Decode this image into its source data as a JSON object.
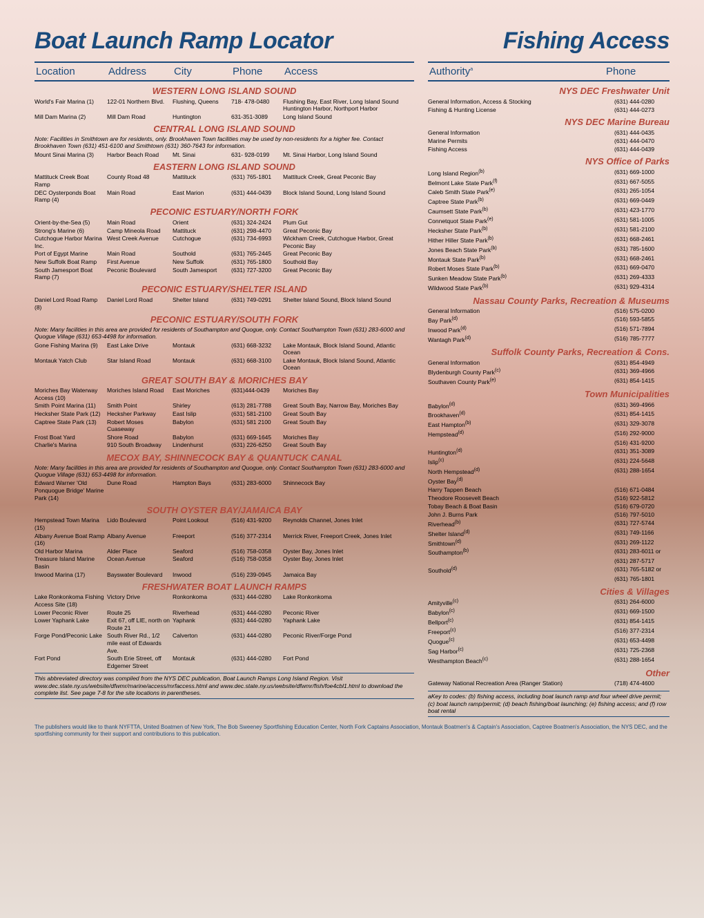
{
  "colors": {
    "blue": "#1a4b7c",
    "red": "#b5483b",
    "yellow": "#a68b3c"
  },
  "titles": {
    "left": "Boat Launch Ramp Locator",
    "right": "Fishing Access"
  },
  "headers_left": [
    "Location",
    "Address",
    "City",
    "Phone",
    "Access"
  ],
  "headers_right": [
    "Authority",
    "Phone"
  ],
  "headers_right_sup": "a",
  "left_sections": [
    {
      "title": "WESTERN LONG ISLAND SOUND",
      "rows": [
        [
          "World's Fair Marina (1)",
          "122-01 Northern Blvd.",
          "Flushing, Queens",
          "718- 478-0480",
          "Flushing Bay, East River, Long Island Sound Huntington Harbor, Northport Harbor"
        ],
        [
          "Mill Dam Marina (2)",
          "Mill Dam Road",
          "Huntington",
          "631-351-3089",
          "Long Island Sound"
        ]
      ]
    },
    {
      "title": "CENTRAL LONG ISLAND SOUND",
      "note": "Note: Facilities in Smithtown are for residents, only. Brookhaven Town facilities may be used by non-residents for a higher fee. Contact Brookhaven Town (631) 451-6100 and Smithtown (631) 360-7643 for information.",
      "rows": [
        [
          "Mount Sinai Marina (3)",
          "Harbor Beach Road",
          "Mt. Sinai",
          "631- 928-0199",
          "Mt. Sinai Harbor, Long Island Sound"
        ]
      ]
    },
    {
      "title": "EASTERN LONG ISLAND SOUND",
      "rows": [
        [
          "Mattituck Creek Boat Ramp",
          "County Road 48",
          "Mattituck",
          "(631) 765-1801",
          "Mattituck Creek, Great Peconic Bay"
        ],
        [
          "DEC Oysterponds Boat Ramp (4)",
          "Main Road",
          "East Marion",
          "(631) 444-0439",
          "Block Island Sound, Long Island Sound"
        ]
      ]
    },
    {
      "title": "PECONIC ESTUARY/NORTH FORK",
      "rows": [
        [
          "Orient-by-the-Sea (5)",
          "Main Road",
          "Orient",
          "(631) 324-2424",
          "Plum Gut"
        ],
        [
          "Strong's Marine (6)",
          "Camp Mineola Road",
          "Mattituck",
          "(631) 298-4470",
          "Great Peconic Bay"
        ],
        [
          "Cutchogue Harbor Marina Inc.",
          "West Creek Avenue",
          "Cutchogue",
          "(631) 734-6993",
          "Wickham Creek, Cutchogue Harbor, Great Peconic Bay"
        ],
        [
          "Port of Egypt Marine",
          "Main Road",
          "Southold",
          "(631) 765-2445",
          "Great Peconic Bay"
        ],
        [
          "New Suffolk Boat Ramp",
          "First Avenue",
          "New Suffolk",
          "(631) 765-1800",
          "Southold Bay"
        ],
        [
          "South Jamesport Boat Ramp (7)",
          "Peconic Boulevard",
          "South Jamesport",
          "(631) 727-3200",
          "Great Peconic Bay"
        ]
      ]
    },
    {
      "title": "PECONIC ESTUARY/SHELTER ISLAND",
      "rows": [
        [
          "Daniel Lord Road Ramp (8)",
          "Daniel Lord Road",
          "Shelter Island",
          "(631) 749-0291",
          "Shelter Island Sound, Block Island Sound"
        ]
      ]
    },
    {
      "title": "PECONIC ESTUARY/SOUTH FORK",
      "note": "Note: Many facilities in this area are provided for residents of Southampton and Quogue, only. Contact Southampton Town (631) 283-6000 and Quogue Village (631) 653-4498 for information.",
      "rows": [
        [
          "Gone Fishing Marina (9)",
          "East Lake Drive",
          "Montauk",
          "(631) 668-3232",
          "Lake Montauk, Block Island Sound, Atlantic Ocean"
        ],
        [
          "Montauk Yatch Club",
          "Star Island Road",
          "Montauk",
          "(631) 668-3100",
          "Lake Montauk, Block Island Sound, Atlantic Ocean"
        ]
      ]
    },
    {
      "title": "GREAT SOUTH BAY & MORICHES BAY",
      "rows": [
        [
          "Moriches Bay Waterway Access (10)",
          "Moriches Island Road",
          "East Moriches",
          "(631)444-0439",
          "Moriches Bay"
        ],
        [
          "Smith Point Marina (11)",
          "Smith Point",
          "Shirley",
          "(613) 281-7788",
          "Great South Bay, Narrow Bay, Moriches Bay"
        ],
        [
          "Hecksher State Park (12)",
          "Hecksher Parkway",
          "East Islip",
          "(631) 581-2100",
          "Great South Bay"
        ],
        [
          "Captree State Park (13)",
          "Robert Moses Cuaseway",
          "Babylon",
          "(631) 581 2100",
          "Great South Bay"
        ],
        [
          "Frost Boat Yard",
          "Shore Road",
          "Babylon",
          "(631) 669-1645",
          "Moriches Bay"
        ],
        [
          "Charlie's Marina",
          "910 South Broadway",
          "Lindenhurst",
          "(631) 226-6250",
          "Great South Bay"
        ]
      ]
    },
    {
      "title": "MECOX BAY, SHINNECOCK BAY & QUANTUCK CANAL",
      "note": "Note: Many facilities in this area are provided for residents of Southampton and Quogue, only. Contact Southampton Town (631) 283-6000 and Quogue Village (631) 653-4498 for information.",
      "rows": [
        [
          "Edward Warner 'Old Ponquogue Bridge' Marine Park (14)",
          "Dune Road",
          "Hampton Bays",
          "(631) 283-6000",
          "Shinnecock Bay"
        ]
      ]
    },
    {
      "title": "SOUTH OYSTER BAY/JAMAICA BAY",
      "rows": [
        [
          "Hempstead Town Marina (15)",
          "Lido Boulevard",
          "Point Lookout",
          "(516) 431-9200",
          "Reynolds Channel, Jones Inlet"
        ],
        [
          "Albany Avenue Boat Ramp (16)",
          "Albany Avenue",
          "Freeport",
          "(516) 377-2314",
          "Merrick River, Freeport Creek, Jones Inlet"
        ],
        [
          "Old Harbor Marina",
          "Alder Place",
          "Seaford",
          "(516) 758-0358",
          "Oyster Bay, Jones Inlet"
        ],
        [
          "Treasure Island Marine Basin",
          "Ocean Avenue",
          "Seaford",
          "(516) 758-0358",
          "Oyster Bay, Jones Inlet"
        ],
        [
          "Inwood Marina (17)",
          "Bayswater Boulevard",
          "Inwood",
          "(516) 239-0945",
          "Jamaica Bay"
        ]
      ]
    },
    {
      "title": "FRESHWATER BOAT LAUNCH RAMPS",
      "rows": [
        [
          "Lake Ronkonkoma Fishing Access Site (18)",
          "Victory Drive",
          "Ronkonkoma",
          "(631) 444-0280",
          "Lake Ronkonkoma"
        ],
        [
          "Lower Peconic River",
          "Route 25",
          "Riverhead",
          "(631) 444-0280",
          "Peconic River"
        ],
        [
          "Lower Yaphank Lake",
          "Exit 67, off LIE, north on Route 21",
          "Yaphank",
          "(631) 444-0280",
          "Yaphank Lake"
        ],
        [
          "Forge Pond/Peconic Lake",
          "South River Rd., 1/2 mile east of Edwards Ave.",
          "Calverton",
          "(631) 444-0280",
          "Peconic River/Forge Pond"
        ],
        [
          "Fort Pond",
          "South Erie Street, off Edgemer Street",
          "Montauk",
          "(631) 444-0280",
          "Fort Pond"
        ]
      ]
    }
  ],
  "left_footnote": "This abbreviated directory was compiled from the NYS DEC publication, Boat Launch Ramps Long Island Region. Visit www.dec.state.ny.us/website/dfwmr/marine/access/mrfaccess.html and www.dec.state.ny.us/website/dfwmr/fish/foe4cbl1.html to download the complete list. See page 7-8 for the site locations in parentheses.",
  "right_sections": [
    {
      "title": "NYS DEC Freshwater Unit",
      "color": "red",
      "rows": [
        [
          "General Information, Access & Stocking",
          "",
          "(631) 444-0280"
        ],
        [
          "Fishing & Hunting License",
          "",
          "(631) 444-0273"
        ]
      ]
    },
    {
      "title": "NYS DEC Marine Bureau",
      "color": "red",
      "rows": [
        [
          "General Information",
          "",
          "(631) 444-0435"
        ],
        [
          "Marine Permits",
          "",
          "(631) 444-0470"
        ],
        [
          "Fishing Access",
          "",
          "(631) 444-0439"
        ]
      ]
    },
    {
      "title": "NYS Office of Parks",
      "color": "red",
      "rows": [
        [
          "Long Island Region",
          "(b)",
          "(631) 669-1000"
        ],
        [
          "Belmont Lake State Park",
          "(f)",
          "(631) 667-5055"
        ],
        [
          "Caleb Smith State Park",
          "(e)",
          "(631) 265-1054"
        ],
        [
          "Captree State Park",
          "(b)",
          "(631) 669-0449"
        ],
        [
          "Caumsett State Park",
          "(b)",
          "(631) 423-1770"
        ],
        [
          "Connetquot State Park",
          "(e)",
          "(631) 581-1005"
        ],
        [
          "Hecksher State Park",
          "(b)",
          "(631) 581-2100"
        ],
        [
          "Hither Hiller State Park",
          "(b)",
          "(631) 668-2461"
        ],
        [
          "Jones Beach State Park",
          "(b)",
          "(631) 785-1600"
        ],
        [
          "Montauk State Park",
          "(b)",
          "(631) 668-2461"
        ],
        [
          "Robert Moses State Park",
          "(b)",
          "(631) 669-0470"
        ],
        [
          "Sunken Meadow State Park",
          "(b)",
          "(631) 269-4333"
        ],
        [
          "Wildwood State Park",
          "(b)",
          "(631) 929-4314"
        ]
      ]
    },
    {
      "title": "Nassau County Parks, Recreation & Museums",
      "color": "red",
      "rows": [
        [
          "General Information",
          "",
          "(516) 575-0200"
        ],
        [
          "Bay Park",
          "(d)",
          "(516) 593-5855"
        ],
        [
          "Inwood Park",
          "(d)",
          "(516) 571-7894"
        ],
        [
          "Wantagh Park",
          "(d)",
          "(516) 785-7777"
        ]
      ]
    },
    {
      "title": "Suffolk County Parks, Recreation & Cons.",
      "color": "red",
      "rows": [
        [
          "General Information",
          "",
          "(631) 854-4949"
        ],
        [
          "Blydenburgh County Park",
          "(c)",
          "(631) 369-4966"
        ],
        [
          "Southaven County Park",
          "(e)",
          "(631) 854-1415"
        ]
      ]
    },
    {
      "title": "Town Municipalities",
      "color": "red",
      "rows": [
        [
          "Babylon",
          "(d)",
          "(631) 369-4966"
        ],
        [
          "Brookhaven",
          "(d)",
          "(631) 854-1415"
        ],
        [
          "East Hampton",
          "(b)",
          "(631) 329-3078"
        ],
        [
          "Hempstead",
          "(d)",
          "(516) 292-9000"
        ],
        [
          "",
          "",
          "(516) 431-9200"
        ],
        [
          "Huntington",
          "(d)",
          "(631) 351-3089"
        ],
        [
          "Islip",
          "(c)",
          "(631) 224-5648"
        ],
        [
          "North Hempstead",
          "(d)",
          "(631) 288-1654"
        ],
        [
          "Oyster Bay",
          "(d)",
          ""
        ],
        [
          "Harry Tappen Beach",
          "",
          "(516) 671-0484"
        ],
        [
          "Theodore Roosevelt Beach",
          "",
          "(516) 922-5812"
        ],
        [
          "Tobay Beach & Boat Basin",
          "",
          "(516) 679-0720"
        ],
        [
          "John J. Burns Park",
          "",
          "(516) 797-5010"
        ],
        [
          "Riverhead",
          "(b)",
          "(631) 727-5744"
        ],
        [
          "Shelter Island",
          "(d)",
          "(631) 749-1166"
        ],
        [
          "Smithtown",
          "(d)",
          "(631) 269-1122"
        ],
        [
          "Southampton",
          "(b)",
          "(631) 283-6011 or"
        ],
        [
          "",
          "",
          "(631) 287-5717"
        ],
        [
          "Southold",
          "(d)",
          "(631) 765-5182 or"
        ],
        [
          "",
          "",
          "(631) 765-1801"
        ]
      ]
    },
    {
      "title": "Cities & Villages",
      "color": "red",
      "rows": [
        [
          "Amityville",
          "(c)",
          "(631) 264-6000"
        ],
        [
          "Babylon",
          "(c)",
          "(631) 669-1500"
        ],
        [
          "Bellport",
          "(c)",
          "(631) 854-1415"
        ],
        [
          "Freeport",
          "(c)",
          "(516) 377-2314"
        ],
        [
          "Quogue",
          "(c)",
          "(631) 653-4498"
        ],
        [
          "Sag Harbor",
          "(c)",
          "(631) 725-2368"
        ],
        [
          "Westhampton Beach",
          "(c)",
          "(631) 288-1654"
        ]
      ]
    },
    {
      "title": "Other",
      "color": "red",
      "rows": [
        [
          "Gateway National Recreation Area (Ranger Station)",
          "",
          "(718) 474-4600"
        ]
      ]
    }
  ],
  "right_footnote": "aKey to codes: (b) fishing access, including boat launch ramp and four wheel drive permit; (c) boat launch ramp/permit; (d) beach fishing/boat launching; (e) fishing access; and (f) row boat rental",
  "pub_note": "The publishers would like to thank NYFTTA, United Boatmen of New York, The Bob Sweeney Sportfishing Education Center, North Fork Captains Association, Montauk Boatmen's & Captain's Association, Captree Boatmen's Association, the NYS DEC, and the sportfishing community for their support and contributions to this publication."
}
